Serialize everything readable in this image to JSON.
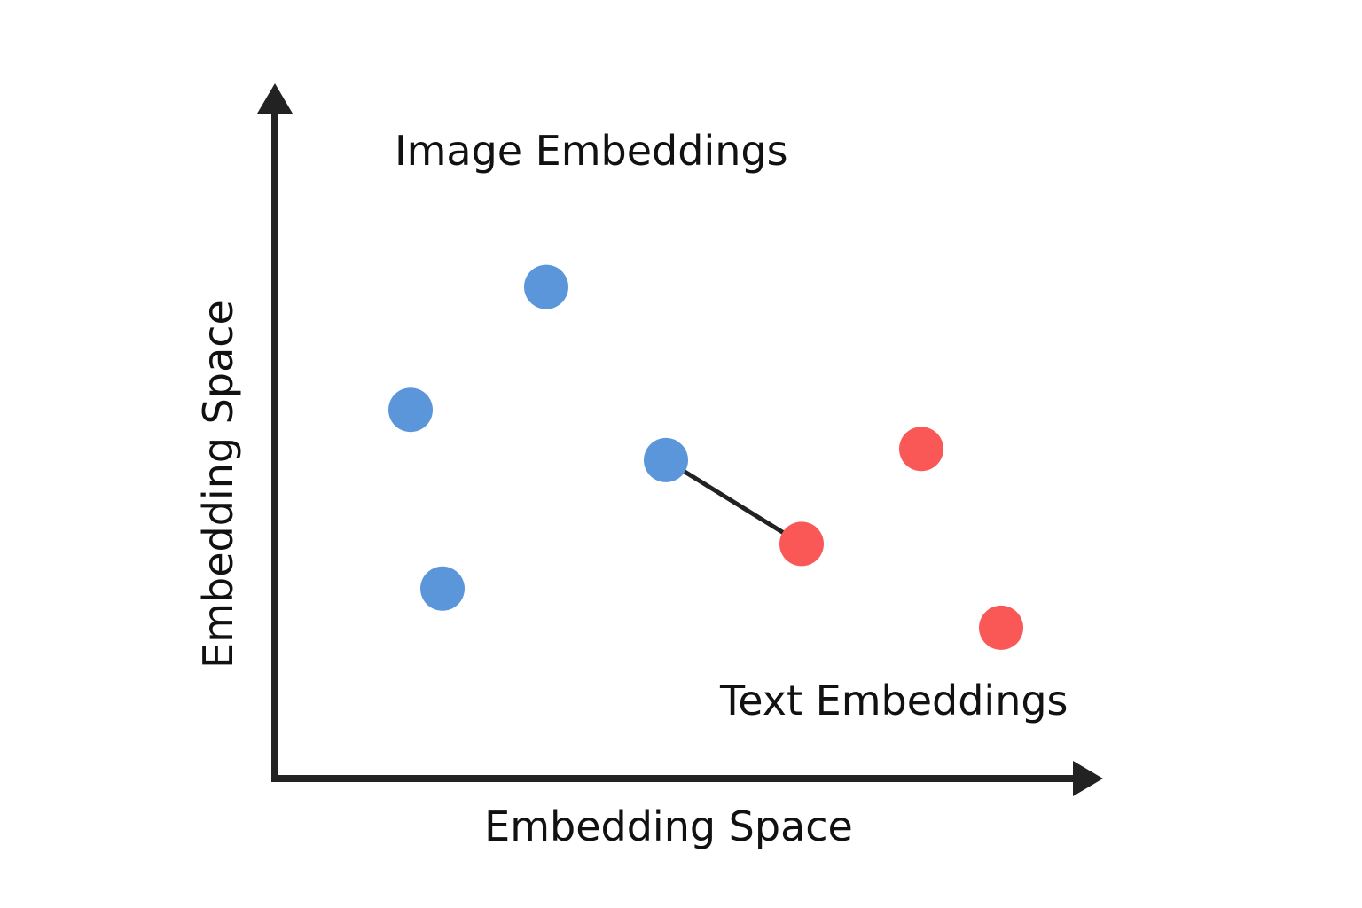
{
  "labels": {
    "image_group": "Image Embeddings",
    "text_group": "Text Embeddings",
    "x_axis": "Embedding Space",
    "y_axis": "Embedding Space"
  },
  "colors": {
    "image_points": "#5b96db",
    "text_points": "#fa5757",
    "axes": "#222222",
    "link": "#222222"
  },
  "chart_data": {
    "type": "scatter",
    "series": [
      {
        "name": "Image Embeddings",
        "points": [
          {
            "x": 3.4,
            "y": 8.8
          },
          {
            "x": 1.7,
            "y": 6.6
          },
          {
            "x": 4.9,
            "y": 5.7
          },
          {
            "x": 2.1,
            "y": 3.4
          }
        ]
      },
      {
        "name": "Text Embeddings",
        "points": [
          {
            "x": 8.1,
            "y": 5.9
          },
          {
            "x": 6.6,
            "y": 4.2
          },
          {
            "x": 9.1,
            "y": 2.7
          }
        ]
      }
    ],
    "links": [
      {
        "from": {
          "series": 0,
          "point": 2
        },
        "to": {
          "series": 1,
          "point": 1
        }
      }
    ],
    "xlim": [
      0,
      10
    ],
    "ylim": [
      0,
      12
    ]
  }
}
